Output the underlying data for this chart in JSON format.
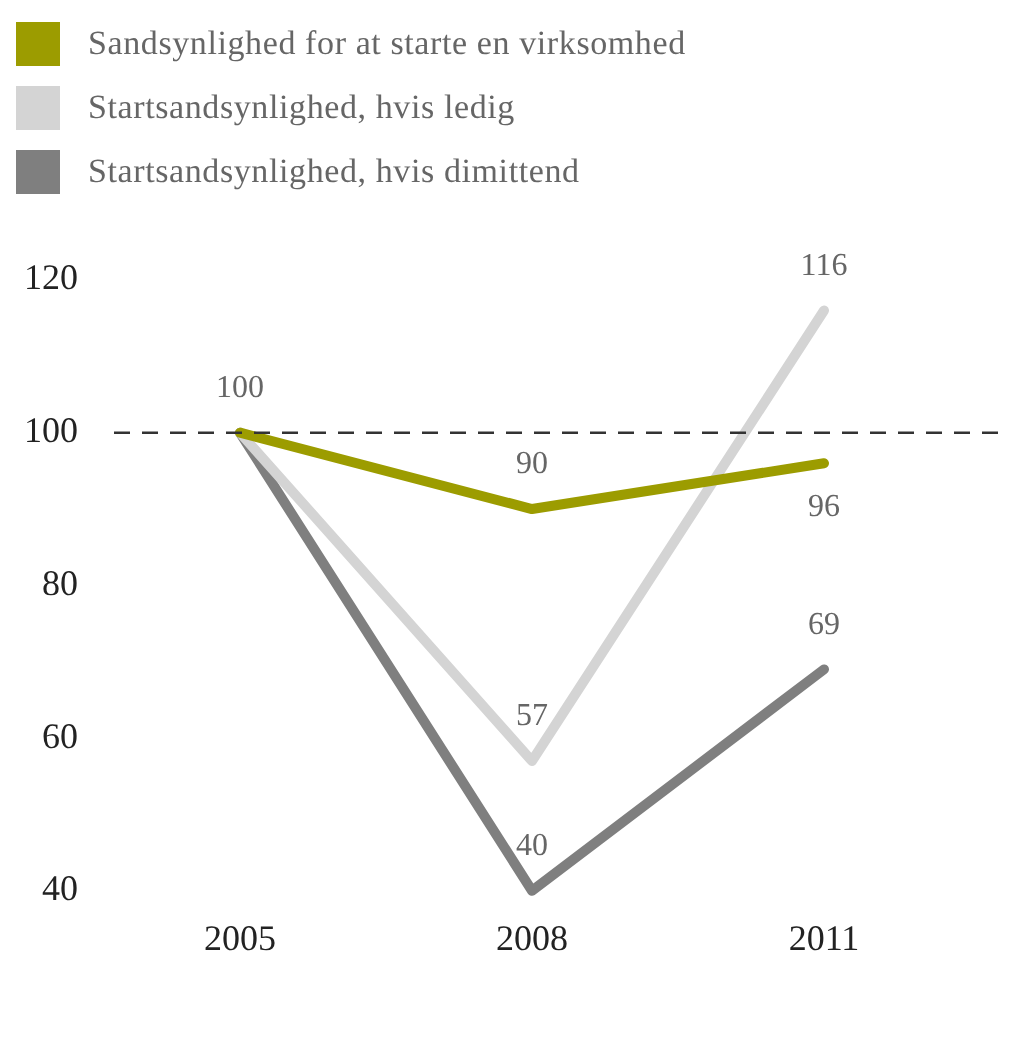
{
  "chart_data": {
    "type": "line",
    "categories": [
      "2005",
      "2008",
      "2011"
    ],
    "series": [
      {
        "name": "Sandsynlighed for at starte en virksomhed",
        "color": "#9c9c00",
        "values": [
          100,
          90,
          96
        ],
        "value_labels": [
          "100",
          "90",
          "96"
        ]
      },
      {
        "name": "Startsandsynlighed, hvis ledig",
        "color": "#d4d4d4",
        "values": [
          100,
          57,
          116
        ],
        "value_labels": [
          null,
          "57",
          "116"
        ]
      },
      {
        "name": "Startsandsynlighed, hvis dimittend",
        "color": "#7f7f7f",
        "values": [
          100,
          40,
          69
        ],
        "value_labels": [
          null,
          "40",
          "69"
        ]
      }
    ],
    "ylim": [
      40,
      120
    ],
    "yticks": [
      40,
      60,
      80,
      100,
      120
    ],
    "grid": false,
    "legend": "top",
    "marker": "none",
    "line_style": "solid",
    "ref_lines": [
      {
        "axis": "y",
        "value": 100,
        "color": "#333333",
        "line_style": "dashed"
      }
    ]
  }
}
